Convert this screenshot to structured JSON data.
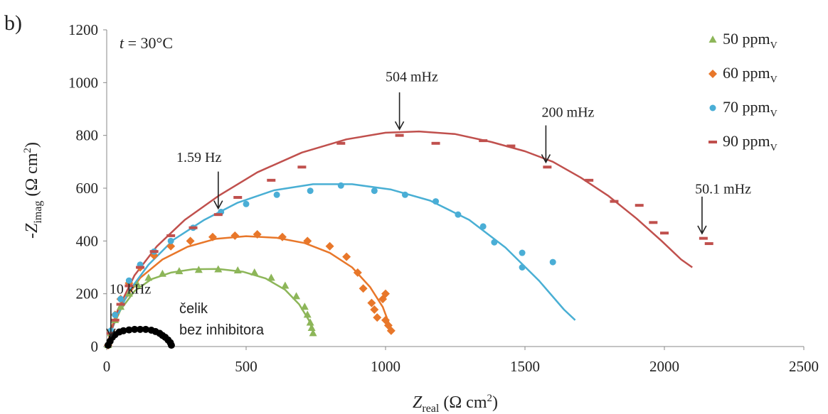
{
  "chart_data": {
    "type": "scatter",
    "panel_label": "b)",
    "condition_label": "t = 30°C",
    "xlabel": {
      "main": "Z",
      "sub": "real",
      "rest": " (Ω cm",
      "sup": "2",
      "end": ")"
    },
    "ylabel": {
      "main": "-Z",
      "sub": "imag",
      "rest": " (Ω cm",
      "sup": "2",
      "end": ")"
    },
    "xlim": [
      0,
      2500
    ],
    "ylim": [
      0,
      1200
    ],
    "x_ticks": [
      0,
      500,
      1000,
      1500,
      2000,
      2500
    ],
    "y_ticks": [
      0,
      200,
      400,
      600,
      800,
      1000,
      1200
    ],
    "legend_position": "top-right",
    "series": [
      {
        "name": "50 ppm",
        "name_sub": "V",
        "marker": "triangle",
        "color": "#8db659",
        "fit_color": "#8db659",
        "points": [
          [
            5,
            5
          ],
          [
            15,
            50
          ],
          [
            30,
            100
          ],
          [
            50,
            150
          ],
          [
            80,
            200
          ],
          [
            110,
            235
          ],
          [
            150,
            260
          ],
          [
            200,
            275
          ],
          [
            260,
            285
          ],
          [
            330,
            290
          ],
          [
            400,
            292
          ],
          [
            470,
            288
          ],
          [
            530,
            280
          ],
          [
            590,
            260
          ],
          [
            640,
            230
          ],
          [
            680,
            190
          ],
          [
            710,
            150
          ],
          [
            720,
            120
          ],
          [
            730,
            90
          ],
          [
            735,
            70
          ],
          [
            740,
            50
          ]
        ],
        "fit": [
          [
            0,
            0
          ],
          [
            20,
            70
          ],
          [
            50,
            140
          ],
          [
            100,
            210
          ],
          [
            160,
            255
          ],
          [
            230,
            280
          ],
          [
            310,
            293
          ],
          [
            400,
            294
          ],
          [
            490,
            283
          ],
          [
            570,
            258
          ],
          [
            640,
            215
          ],
          [
            690,
            160
          ],
          [
            725,
            100
          ],
          [
            745,
            40
          ]
        ]
      },
      {
        "name": "60 ppm",
        "name_sub": "V",
        "marker": "diamond",
        "color": "#e8772a",
        "fit_color": "#e8772a",
        "points": [
          [
            5,
            5
          ],
          [
            15,
            60
          ],
          [
            30,
            120
          ],
          [
            50,
            180
          ],
          [
            80,
            240
          ],
          [
            120,
            300
          ],
          [
            170,
            345
          ],
          [
            230,
            380
          ],
          [
            300,
            400
          ],
          [
            380,
            415
          ],
          [
            460,
            420
          ],
          [
            540,
            425
          ],
          [
            630,
            415
          ],
          [
            720,
            400
          ],
          [
            800,
            380
          ],
          [
            860,
            340
          ],
          [
            900,
            280
          ],
          [
            920,
            220
          ],
          [
            950,
            165
          ],
          [
            960,
            140
          ],
          [
            970,
            110
          ],
          [
            1000,
            100
          ],
          [
            1010,
            80
          ],
          [
            1020,
            60
          ],
          [
            990,
            180
          ],
          [
            1000,
            200
          ]
        ],
        "fit": [
          [
            0,
            0
          ],
          [
            20,
            80
          ],
          [
            60,
            170
          ],
          [
            120,
            260
          ],
          [
            200,
            330
          ],
          [
            290,
            378
          ],
          [
            390,
            408
          ],
          [
            500,
            418
          ],
          [
            610,
            412
          ],
          [
            710,
            392
          ],
          [
            800,
            355
          ],
          [
            880,
            300
          ],
          [
            945,
            225
          ],
          [
            990,
            150
          ],
          [
            1015,
            80
          ],
          [
            1020,
            60
          ]
        ]
      },
      {
        "name": "70 ppm",
        "name_sub": "V",
        "marker": "circle",
        "color": "#4aaed6",
        "fit_color": "#49afd4",
        "points": [
          [
            5,
            5
          ],
          [
            15,
            60
          ],
          [
            30,
            120
          ],
          [
            50,
            180
          ],
          [
            80,
            250
          ],
          [
            120,
            310
          ],
          [
            170,
            360
          ],
          [
            230,
            400
          ],
          [
            310,
            450
          ],
          [
            410,
            510
          ],
          [
            500,
            540
          ],
          [
            610,
            575
          ],
          [
            730,
            590
          ],
          [
            840,
            610
          ],
          [
            960,
            590
          ],
          [
            1070,
            575
          ],
          [
            1180,
            550
          ],
          [
            1260,
            500
          ],
          [
            1350,
            455
          ],
          [
            1390,
            395
          ],
          [
            1490,
            355
          ],
          [
            1490,
            300
          ],
          [
            1600,
            320
          ]
        ],
        "fit": [
          [
            0,
            0
          ],
          [
            30,
            100
          ],
          [
            80,
            210
          ],
          [
            150,
            310
          ],
          [
            240,
            405
          ],
          [
            350,
            480
          ],
          [
            470,
            545
          ],
          [
            600,
            592
          ],
          [
            740,
            615
          ],
          [
            880,
            615
          ],
          [
            1020,
            595
          ],
          [
            1160,
            553
          ],
          [
            1300,
            480
          ],
          [
            1430,
            375
          ],
          [
            1550,
            250
          ],
          [
            1640,
            140
          ],
          [
            1680,
            100
          ]
        ]
      },
      {
        "name": "90 ppm",
        "name_sub": "V",
        "marker": "dash",
        "color": "#c0504d",
        "fit_color": "#c0504d",
        "points": [
          [
            15,
            50
          ],
          [
            30,
            100
          ],
          [
            50,
            160
          ],
          [
            80,
            230
          ],
          [
            120,
            300
          ],
          [
            170,
            360
          ],
          [
            230,
            420
          ],
          [
            310,
            450
          ],
          [
            400,
            500
          ],
          [
            470,
            565
          ],
          [
            590,
            630
          ],
          [
            700,
            680
          ],
          [
            840,
            770
          ],
          [
            1050,
            800
          ],
          [
            1180,
            770
          ],
          [
            1350,
            780
          ],
          [
            1450,
            760
          ],
          [
            1580,
            680
          ],
          [
            1730,
            630
          ],
          [
            1820,
            550
          ],
          [
            1910,
            535
          ],
          [
            1960,
            470
          ],
          [
            2000,
            430
          ],
          [
            2140,
            410
          ],
          [
            2160,
            390
          ]
        ],
        "fit": [
          [
            0,
            0
          ],
          [
            40,
            140
          ],
          [
            100,
            270
          ],
          [
            180,
            380
          ],
          [
            280,
            480
          ],
          [
            400,
            570
          ],
          [
            540,
            660
          ],
          [
            700,
            735
          ],
          [
            860,
            785
          ],
          [
            1000,
            810
          ],
          [
            1120,
            815
          ],
          [
            1250,
            805
          ],
          [
            1380,
            775
          ],
          [
            1500,
            740
          ],
          [
            1600,
            700
          ],
          [
            1700,
            640
          ],
          [
            1800,
            570
          ],
          [
            1900,
            485
          ],
          [
            1990,
            400
          ],
          [
            2060,
            330
          ],
          [
            2100,
            300
          ]
        ]
      },
      {
        "name": "čelik bez inhibitora",
        "marker": "dot",
        "color": "#000000",
        "fit_color": "#000000",
        "points": [
          [
            5,
            5
          ],
          [
            12,
            20
          ],
          [
            20,
            35
          ],
          [
            30,
            45
          ],
          [
            45,
            55
          ],
          [
            60,
            60
          ],
          [
            80,
            63
          ],
          [
            100,
            65
          ],
          [
            120,
            65
          ],
          [
            140,
            65
          ],
          [
            160,
            62
          ],
          [
            175,
            57
          ],
          [
            190,
            50
          ],
          [
            200,
            42
          ],
          [
            210,
            35
          ],
          [
            220,
            25
          ],
          [
            228,
            15
          ],
          [
            232,
            5
          ]
        ],
        "fit": []
      }
    ],
    "annotations": [
      {
        "text": "10 kHz",
        "x": 15,
        "y": 30,
        "label_x": 10,
        "label_y": 200,
        "dy": -50
      },
      {
        "text": "1.59 Hz",
        "x": 400,
        "y": 515,
        "label_x": 250,
        "label_y": 700,
        "dy": -55
      },
      {
        "text": "504 mHz",
        "x": 1050,
        "y": 815,
        "label_x": 1000,
        "label_y": 1005,
        "dy": -55
      },
      {
        "text": "200 mHz",
        "x": 1575,
        "y": 690,
        "label_x": 1560,
        "label_y": 870,
        "dy": -55
      },
      {
        "text": "50.1 mHz",
        "x": 2135,
        "y": 420,
        "label_x": 2110,
        "label_y": 580,
        "dy": -55
      }
    ],
    "steel_label": [
      "čelik",
      "bez inhibitora"
    ]
  }
}
